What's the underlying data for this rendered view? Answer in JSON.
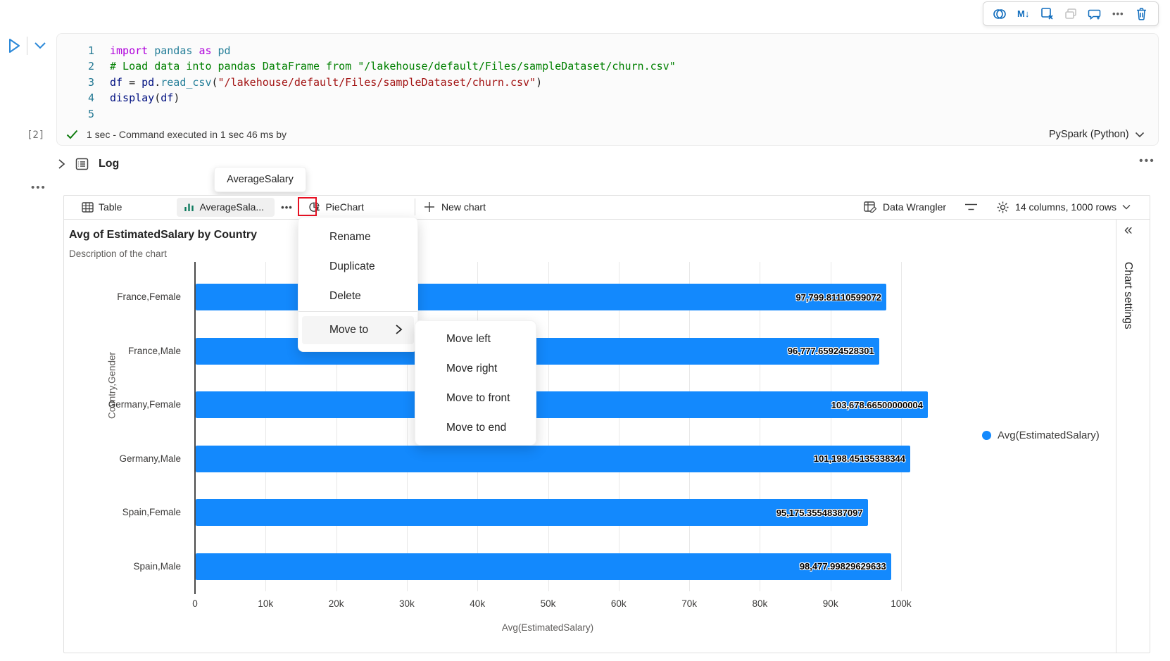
{
  "colors": {
    "accent": "#0F6CBD",
    "bar_blue": "#1389FD",
    "tab_icon_green": "#0F7B5F",
    "annotation_red": "#E81123",
    "check_green": "#107C10",
    "keyword_purple": "#AF00DB",
    "comment_green": "#008000",
    "string_red": "#A31515"
  },
  "cell_toolbar": {
    "icons": [
      "copilot",
      "markdown-convert",
      "clear-outputs",
      "copy",
      "comment-add",
      "more",
      "delete"
    ],
    "markdown_glyph": "M↓"
  },
  "code_cell": {
    "line_numbers": [
      "1",
      "2",
      "3",
      "4",
      "5"
    ],
    "lines": [
      [
        [
          "import ",
          "tok-kw"
        ],
        [
          "pandas ",
          "tok-mod"
        ],
        [
          "as ",
          "tok-kw"
        ],
        [
          "pd",
          "tok-mod"
        ]
      ],
      [
        [
          "# Load data into pandas DataFrame from \"/lakehouse/default/Files/sampleDataset/churn.csv\"",
          "tok-com"
        ]
      ],
      [
        [
          "df",
          "tok-var"
        ],
        [
          " = ",
          "tok-pun"
        ],
        [
          "pd",
          "tok-var"
        ],
        [
          ".",
          "tok-pun"
        ],
        [
          "read_csv",
          "tok-fn"
        ],
        [
          "(",
          "tok-pun"
        ],
        [
          "\"/lakehouse/default/Files/sampleDataset/churn.csv\"",
          "tok-str"
        ],
        [
          ")",
          "tok-pun"
        ]
      ],
      [
        [
          "display",
          "tok-var"
        ],
        [
          "(",
          "tok-pun"
        ],
        [
          "df",
          "tok-var"
        ],
        [
          ")",
          "tok-pun"
        ]
      ],
      [
        [
          "",
          ""
        ]
      ]
    ],
    "execution_count": "[2]",
    "status_text": "1 sec - Command executed in 1 sec 46 ms by",
    "kernel": "PySpark (Python)"
  },
  "log_section": {
    "label": "Log",
    "more_glyph": "•••"
  },
  "cell_more_glyph": "•••",
  "tooltip": {
    "text": "AverageSalary"
  },
  "chart_panel": {
    "tabs": {
      "table": "Table",
      "chart": "AverageSala...",
      "pie": "PieChart"
    },
    "tab_more_glyph": "•••",
    "new_chart_label": "New chart",
    "new_chart_plus": "+",
    "data_wrangler_label": "Data Wrangler",
    "columns_rows_label": "14 columns, 1000 rows",
    "title": "Avg of EstimatedSalary by Country",
    "subtitle": "Description of the chart",
    "sidebar_title": "Chart settings",
    "collapse_glyph": "«"
  },
  "context_menu": {
    "items": [
      "Rename",
      "Duplicate",
      "Delete"
    ],
    "submenu_trigger": "Move to",
    "submenu_items": [
      "Move left",
      "Move right",
      "Move to front",
      "Move to end"
    ]
  },
  "chart_data": {
    "type": "bar",
    "orientation": "horizontal",
    "title": "Avg of EstimatedSalary by Country",
    "subtitle": "Description of the chart",
    "categories": [
      "France,Female",
      "France,Male",
      "Germany,Female",
      "Germany,Male",
      "Spain,Female",
      "Spain,Male"
    ],
    "values": [
      97799.81110599072,
      96777.65924528301,
      103678.66500000004,
      101198.45135338344,
      95175.35548387097,
      98477.99829629633
    ],
    "value_labels": [
      "97,799.81110599072",
      "96,777.65924528301",
      "103,678.66500000004",
      "101,198.45135338344",
      "95,175.35548387097",
      "98,477.99829629633"
    ],
    "xlabel": "Avg(EstimatedSalary)",
    "ylabel": "Country,Gender",
    "legend": "Avg(EstimatedSalary)",
    "legend_position": "right",
    "xticks": [
      "0",
      "10k",
      "20k",
      "30k",
      "40k",
      "50k",
      "60k",
      "70k",
      "80k",
      "90k",
      "100k"
    ],
    "xlim": [
      0,
      100000
    ],
    "grid": true,
    "bar_color": "#1389FD"
  }
}
